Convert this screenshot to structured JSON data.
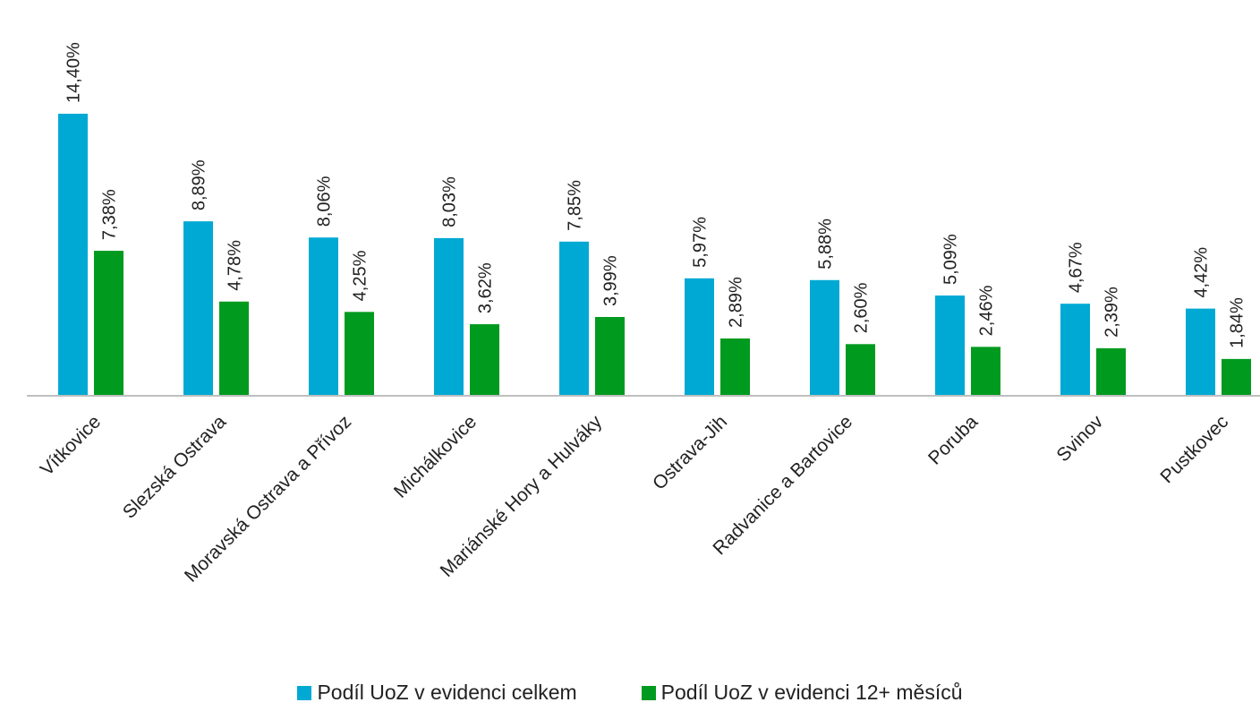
{
  "chart_data": {
    "type": "bar",
    "categories": [
      "Vítkovice",
      "Slezská Ostrava",
      "Moravská Ostrava a Přívoz",
      "Michálkovice",
      "Mariánské Hory a Hulváky",
      "Ostrava-Jih",
      "Radvanice a Bartovice",
      "Poruba",
      "Svinov",
      "Pustkovec"
    ],
    "series": [
      {
        "name": "Podíl UoZ v evidenci celkem",
        "color": "#00A9D4",
        "values": [
          14.4,
          8.89,
          8.06,
          8.03,
          7.85,
          5.97,
          5.88,
          5.09,
          4.67,
          4.42
        ],
        "labels": [
          "14,40%",
          "8,89%",
          "8,06%",
          "8,03%",
          "7,85%",
          "5,97%",
          "5,88%",
          "5,09%",
          "4,67%",
          "4,42%"
        ]
      },
      {
        "name": "Podíl UoZ v evidenci 12+ měsíců",
        "color": "#009A1F",
        "values": [
          7.38,
          4.78,
          4.25,
          3.62,
          3.99,
          2.89,
          2.6,
          2.46,
          2.39,
          1.84
        ],
        "labels": [
          "7,38%",
          "4,78%",
          "4,25%",
          "3,62%",
          "3,99%",
          "2,89%",
          "2,60%",
          "2,46%",
          "2,39%",
          "1,84%"
        ]
      }
    ],
    "title": "",
    "xlabel": "",
    "ylabel": "",
    "ylim": [
      0,
      14.4
    ],
    "grid": false,
    "legend_position": "bottom",
    "axis_color": "#BFBFBF"
  }
}
